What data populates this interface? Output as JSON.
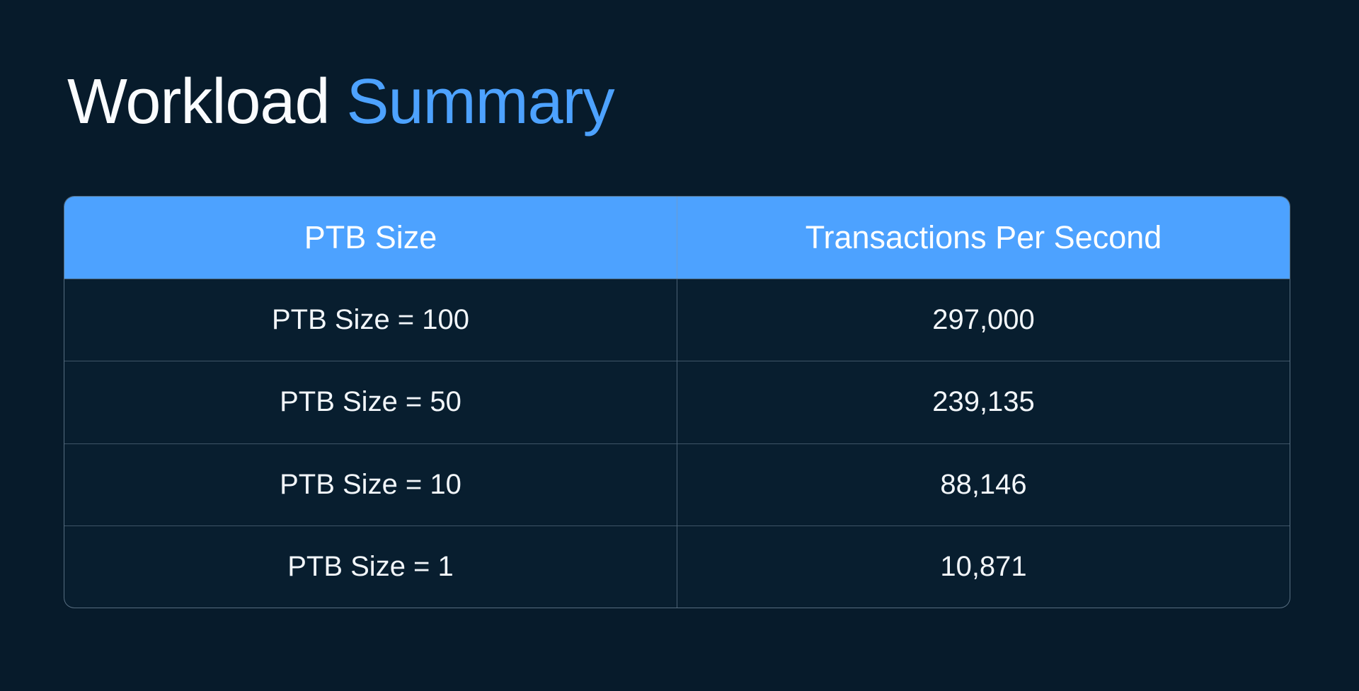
{
  "page": {
    "background_color": "#071B2B",
    "accent_color": "#4DA2FF"
  },
  "title": {
    "part1": "Workload",
    "part2": "Summary",
    "part1_color": "#FAFCFE",
    "part2_color": "#4DA2FF"
  },
  "table": {
    "header_bg_color": "#4DA2FF",
    "header_text_color": "#FFFFFF",
    "headers": [
      "PTB Size",
      "Transactions Per Second"
    ],
    "rows": [
      {
        "size": "PTB Size = 100",
        "tps": "297,000"
      },
      {
        "size": "PTB Size = 50",
        "tps": "239,135"
      },
      {
        "size": "PTB Size = 10",
        "tps": "88,146"
      },
      {
        "size": "PTB Size = 1",
        "tps": "10,871"
      }
    ]
  },
  "chart_data": {
    "type": "table",
    "title": "Workload Summary",
    "columns": [
      "PTB Size",
      "Transactions Per Second"
    ],
    "categories": [
      "PTB Size = 100",
      "PTB Size = 50",
      "PTB Size = 10",
      "PTB Size = 1"
    ],
    "values": [
      297000,
      239135,
      88146,
      10871
    ]
  }
}
